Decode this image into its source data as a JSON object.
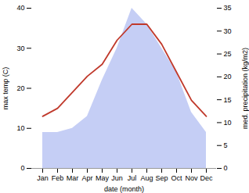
{
  "chart_data": {
    "type": "line",
    "categories": [
      "Jan",
      "Feb",
      "Mar",
      "Apr",
      "May",
      "Jun",
      "Jul",
      "Aug",
      "Sep",
      "Oct",
      "Nov",
      "Dec"
    ],
    "series": [
      {
        "type": "area",
        "color": "#c5cef5",
        "values": [
          9,
          9,
          10,
          13,
          22,
          30,
          40,
          36,
          30,
          24,
          14,
          9
        ]
      },
      {
        "type": "line",
        "color": "#c0392b",
        "values": [
          13,
          15,
          19,
          23,
          26,
          32,
          36,
          36,
          31,
          24,
          17,
          13
        ]
      }
    ],
    "xlabel": "date (month)",
    "ylabel": "max temp (C)",
    "y2label": "med. precipitation (kg/m2)",
    "ylim": [
      0,
      40
    ],
    "yticks": [
      0,
      10,
      20,
      30,
      40
    ],
    "y2lim": [
      0,
      35
    ],
    "y2ticks": [
      0,
      5,
      10,
      15,
      20,
      25,
      30,
      35
    ],
    "grid": false
  }
}
